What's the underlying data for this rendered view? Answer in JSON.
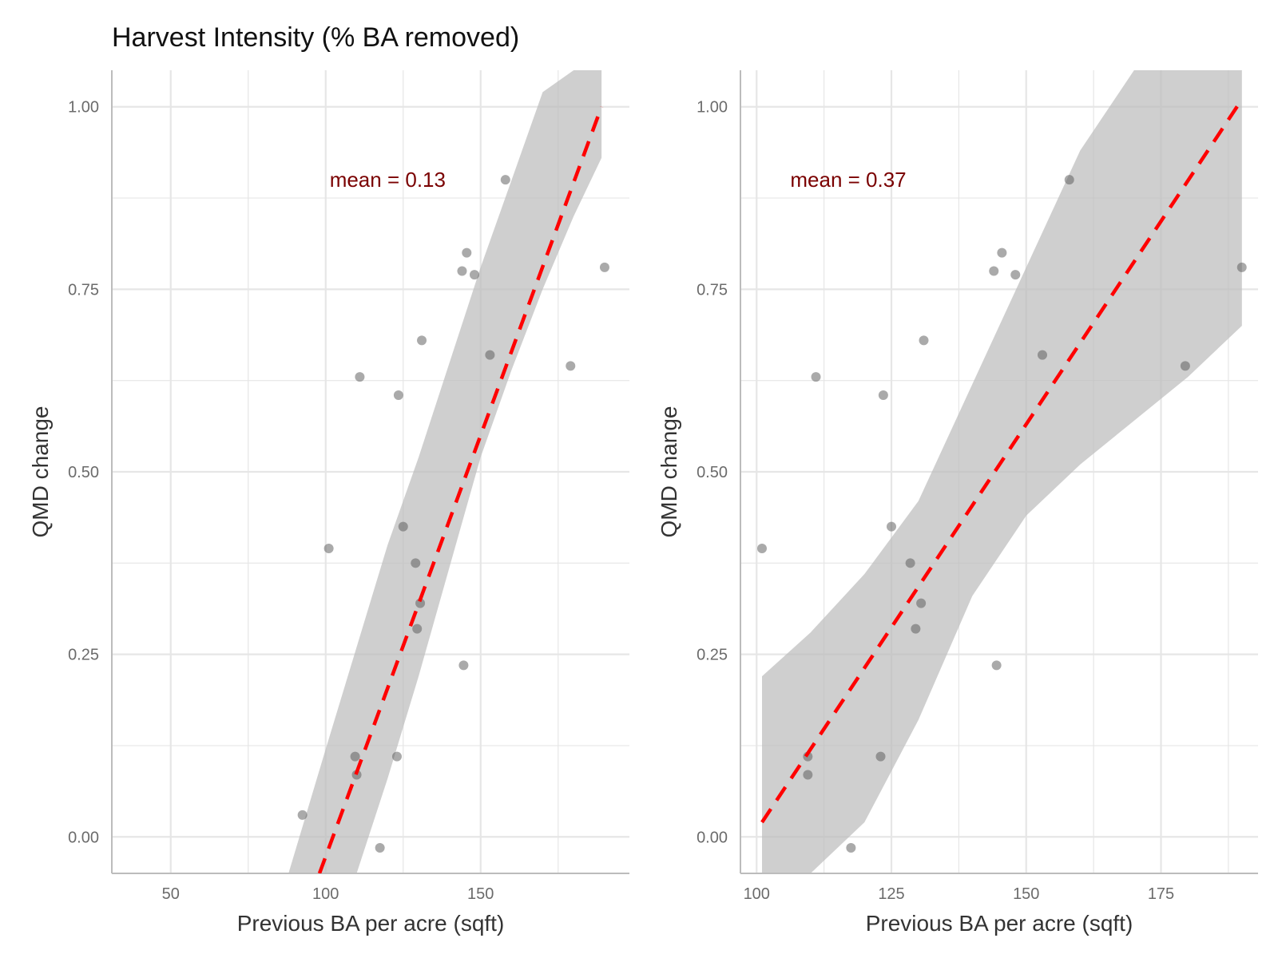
{
  "title": "Harvest Intensity (% BA removed)",
  "colors": {
    "points": "#555555",
    "fit_line": "#ff0000",
    "ribbon": "#bdbdbd",
    "annotation": "#7a0000",
    "grid": "#e6e6e6"
  },
  "chart_data": [
    {
      "type": "scatter",
      "xlabel": "Previous BA per acre (sqft)",
      "ylabel": "QMD change",
      "xlim": [
        31,
        198
      ],
      "ylim": [
        -0.05,
        1.05
      ],
      "xticks": [
        50,
        100,
        150
      ],
      "xtick_labels": [
        "50",
        "100",
        "150"
      ],
      "yticks": [
        0,
        0.25,
        0.5,
        0.75,
        1.0
      ],
      "ytick_labels": [
        "0.00",
        "0.25",
        "0.50",
        "0.75",
        "1.00"
      ],
      "grid": true,
      "annotation": {
        "text": "mean = 0.13",
        "x": 120,
        "y": 0.9
      },
      "fit_line": {
        "x": [
          98,
          189
        ],
        "y": [
          -0.05,
          1.0
        ]
      },
      "ribbon": {
        "x": [
          88,
          100,
          110,
          120,
          130,
          140,
          150,
          160,
          170,
          180,
          189
        ],
        "upper": [
          -0.05,
          0.12,
          0.26,
          0.4,
          0.52,
          0.65,
          0.78,
          0.9,
          1.02,
          1.05,
          1.05
        ],
        "lower": [
          -0.05,
          -0.05,
          -0.05,
          0.08,
          0.22,
          0.37,
          0.52,
          0.64,
          0.75,
          0.85,
          0.93
        ]
      },
      "points": {
        "x": [
          92.5,
          101,
          109.5,
          110,
          111,
          117.5,
          123,
          123.5,
          125,
          129,
          129.5,
          130.5,
          131,
          144,
          144.5,
          145.5,
          148,
          153,
          158,
          179,
          190
        ],
        "y": [
          0.03,
          0.395,
          0.11,
          0.085,
          0.63,
          -0.015,
          0.11,
          0.605,
          0.425,
          0.375,
          0.285,
          0.32,
          0.68,
          0.775,
          0.235,
          0.8,
          0.77,
          0.66,
          0.9,
          0.645,
          0.78
        ]
      }
    },
    {
      "type": "scatter",
      "xlabel": "Previous BA per acre (sqft)",
      "ylabel": "QMD change",
      "xlim": [
        97,
        193
      ],
      "ylim": [
        -0.05,
        1.05
      ],
      "xticks": [
        100,
        125,
        150,
        175
      ],
      "xtick_labels": [
        "100",
        "125",
        "150",
        "175"
      ],
      "yticks": [
        0,
        0.25,
        0.5,
        0.75,
        1.0
      ],
      "ytick_labels": [
        "0.00",
        "0.25",
        "0.50",
        "0.75",
        "1.00"
      ],
      "grid": true,
      "annotation": {
        "text": "mean = 0.37",
        "x": 117,
        "y": 0.9
      },
      "fit_line": {
        "x": [
          101,
          190
        ],
        "y": [
          0.02,
          1.01
        ]
      },
      "ribbon": {
        "x": [
          101,
          110,
          120,
          130,
          140,
          150,
          160,
          170,
          180,
          190
        ],
        "upper": [
          0.22,
          0.28,
          0.36,
          0.46,
          0.62,
          0.78,
          0.94,
          1.05,
          1.05,
          1.05
        ],
        "lower": [
          -0.05,
          -0.05,
          0.02,
          0.16,
          0.33,
          0.44,
          0.51,
          0.57,
          0.63,
          0.7
        ]
      },
      "points": {
        "x": [
          101,
          109.5,
          109.5,
          111,
          117.5,
          123,
          123.5,
          125,
          128.5,
          129.5,
          130.5,
          131,
          144,
          144.5,
          145.5,
          148,
          153,
          158,
          179.5,
          190
        ],
        "y": [
          0.395,
          0.11,
          0.085,
          0.63,
          -0.015,
          0.11,
          0.605,
          0.425,
          0.375,
          0.285,
          0.32,
          0.68,
          0.775,
          0.235,
          0.8,
          0.77,
          0.66,
          0.9,
          0.645,
          0.78
        ]
      }
    }
  ]
}
